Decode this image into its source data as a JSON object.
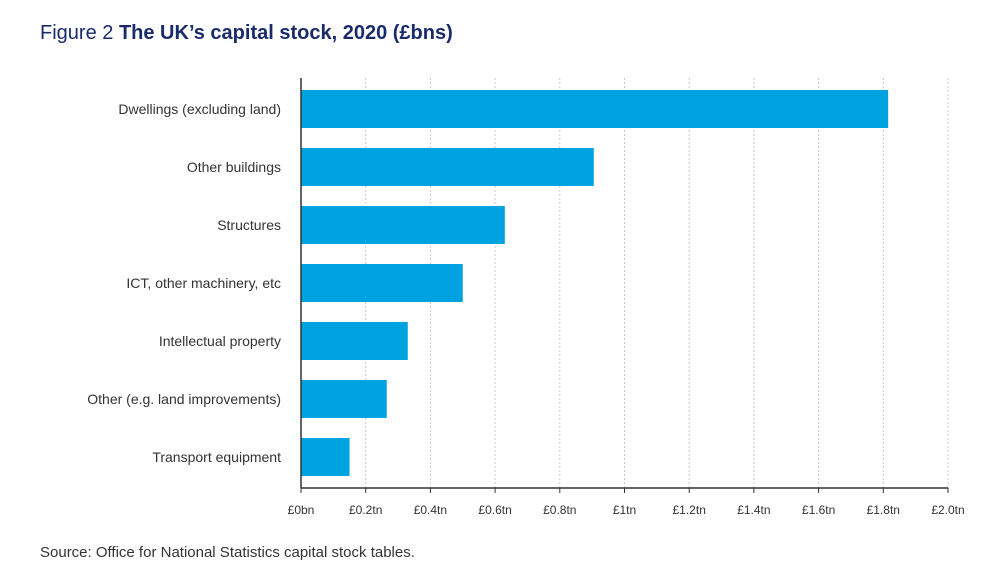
{
  "figure_label": "Figure 2",
  "chart_data": {
    "type": "bar",
    "orientation": "horizontal",
    "title": "The UK’s capital stock, 2020 (£bns)",
    "categories": [
      "Dwellings (excluding land)",
      "Other buildings",
      "Structures",
      "ICT, other machinery, etc",
      "Intellectual property",
      "Other (e.g. land improvements)",
      "Transport equipment"
    ],
    "values": [
      1815,
      905,
      630,
      500,
      330,
      265,
      150
    ],
    "xlim": [
      0,
      2000
    ],
    "xticks": [
      0,
      200,
      400,
      600,
      800,
      1000,
      1200,
      1400,
      1600,
      1800,
      2000
    ],
    "xtick_labels": [
      "£0bn",
      "£0.2tn",
      "£0.4tn",
      "£0.6tn",
      "£0.8tn",
      "£1tn",
      "£1.2tn",
      "£1.4tn",
      "£1.6tn",
      "£1.8tn",
      "£2.0tn"
    ],
    "grid": true,
    "bar_color": "#00a3e0",
    "grid_color": "#c8c8c8",
    "axis_color": "#333333"
  },
  "source": "Source: Office for National Statistics capital stock tables."
}
